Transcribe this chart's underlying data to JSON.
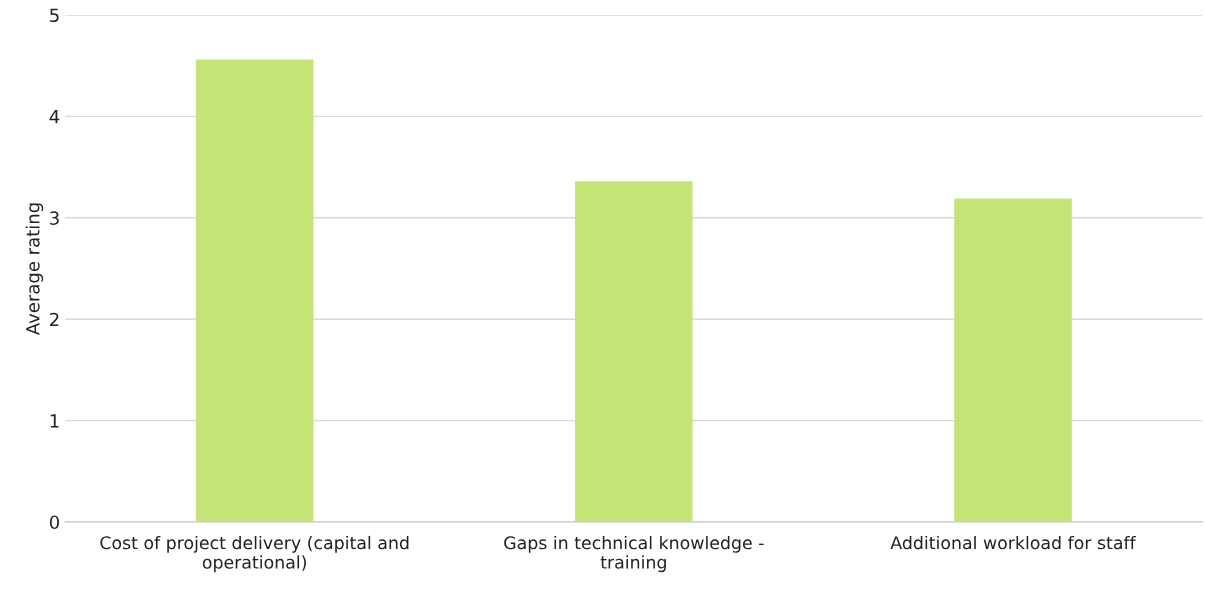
{
  "chart_data": {
    "type": "bar",
    "ylabel": "Average rating",
    "categories": [
      "Cost of project delivery (capital and\noperational)",
      "Gaps in technical knowledge -\ntraining",
      "Additional workload for staff"
    ],
    "values": [
      4.56,
      3.36,
      3.19
    ],
    "color": "#c6e378",
    "ylim": [
      0,
      5
    ],
    "yticks": [
      0,
      1,
      2,
      3,
      4,
      5
    ],
    "grid": "y"
  }
}
